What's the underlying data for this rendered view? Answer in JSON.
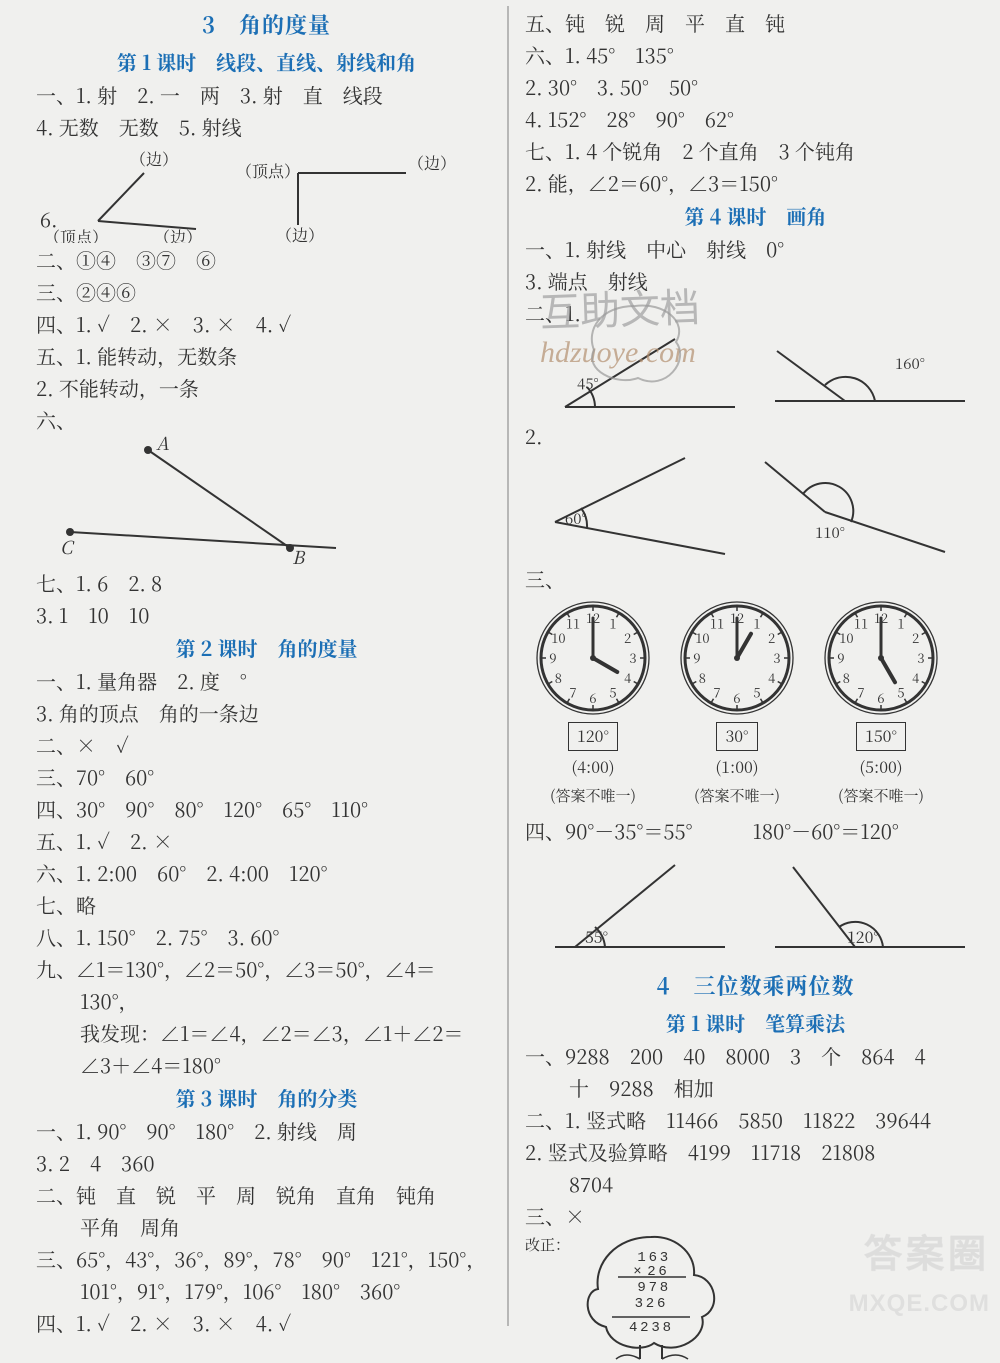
{
  "colors": {
    "accent": "#1c6fb5",
    "ink": "#333333",
    "bg": "#f0f0ee",
    "divider": "#888888"
  },
  "branding": {
    "line1": "答案圈",
    "line2": "MXQE.COM"
  },
  "watermark": {
    "text1": "互助文档",
    "text2": "hdzuoye.com"
  },
  "left": {
    "sec3_title": "3　角的度量",
    "l1_title": "第 1 课时　线段、直线、射线和角",
    "l1_1": "一、1. 射　2. 一　两　3. 射　直　线段",
    "l1_2": "4. 无数　无数　5. 射线",
    "l1_diag_labels": {
      "v1": "（顶点）",
      "v2": "（顶点）",
      "e1": "（边）",
      "e2": "（边）",
      "e3": "（边）",
      "e4": "（边）",
      "six": "6."
    },
    "l1_3": "二、①④　③⑦　⑥",
    "l1_4": "三、②④⑥",
    "l1_5": "四、1. ✓　2. ×　3. ×　4. ✓",
    "l1_6": "五、1. 能转动，无数条",
    "l1_7": "2. 不能转动，一条",
    "l1_8": "六、",
    "pts": {
      "A": "A",
      "B": "B",
      "C": "C"
    },
    "l1_9": "七、1. 6　2. 8",
    "l1_10": "3. 1　10　10",
    "l2_title": "第 2 课时　角的度量",
    "l2_1": "一、1. 量角器　2. 度　°",
    "l2_2": "3. 角的顶点　角的一条边",
    "l2_3": "二、×　✓",
    "l2_4": "三、70°　60°",
    "l2_5": "四、30°　90°　80°　120°　65°　110°",
    "l2_6": "五、1. ✓　2. ×",
    "l2_7": "六、1. 2:00　60°　2. 4:00　120°",
    "l2_8": "七、略",
    "l2_9": "八、1. 150°　2. 75°　3. 60°",
    "l2_10": "九、∠1＝130°，∠2＝50°，∠3＝50°，∠4＝",
    "l2_10b": "130°，",
    "l2_11": "我发现：∠1＝∠4，∠2＝∠3，∠1＋∠2＝",
    "l2_11b": "∠3＋∠4＝180°",
    "l3_title": "第 3 课时　角的分类",
    "l3_1": "一、1. 90°　90°　180°　2. 射线　周",
    "l3_2": "3. 2　4　360",
    "l3_3": "二、钝　直　锐　平　周　锐角　直角　钝角",
    "l3_3b": "平角　周角",
    "l3_4": "三、65°，43°，36°，89°，78°　90°　121°，150°，",
    "l3_4b": "101°，91°，179°，106°　180°　360°",
    "l3_5": "四、1. ✓　2. ×　3. ×　4. ✓"
  },
  "right": {
    "r0": "五、钝　锐　周　平　直　钝",
    "r1": "六、1. 45°　135°",
    "r2": "2. 30°　3. 50°　50°",
    "r3": "4. 152°　28°　90°　62°",
    "r4": "七、1. 4 个锐角　2 个直角　3 个钝角",
    "r5": "2. 能，∠2＝60°，∠3＝150°",
    "l4_title": "第 4 课时　画角",
    "r6": "一、1. 射线　中心　射线　0°",
    "r7": "3. 端点　射线",
    "r8": "二、1.",
    "ang1": {
      "a": "45°",
      "b": "160°"
    },
    "r9": "2.",
    "ang2": {
      "a": "60°",
      "b": "110°"
    },
    "r10": "三、",
    "clocks": [
      {
        "hour": 4,
        "minute": 0,
        "deg": "120°",
        "time": "(4:00)",
        "note": "(答案不唯一)"
      },
      {
        "hour": 1,
        "minute": 0,
        "deg": "30°",
        "time": "(1:00)",
        "note": "(答案不唯一)"
      },
      {
        "hour": 5,
        "minute": 0,
        "deg": "150°",
        "time": "(5:00)",
        "note": "(答案不唯一)"
      }
    ],
    "r11": "四、90°－35°＝55°　　　180°－60°＝120°",
    "angles": {
      "a": "55°",
      "b": "120°"
    },
    "sec4_title": "4　三位数乘两位数",
    "l41_title": "第 1 课时　笔算乘法",
    "r12": "一、9288　200　40　8000　3　个　864　4",
    "r12b": "十　9288　相加",
    "r13": "二、1. 竖式略　11466　5850　11822　39644",
    "r14": "2. 竖式及验算略　4199　11718　21808",
    "r14b": "8704",
    "r15": "三、×",
    "tree": {
      "label": "改正：",
      "lines": [
        "  1 6 3",
        "×  2 6",
        "  9 7 8",
        "3 2 6",
        "4 2 3 8"
      ]
    }
  }
}
